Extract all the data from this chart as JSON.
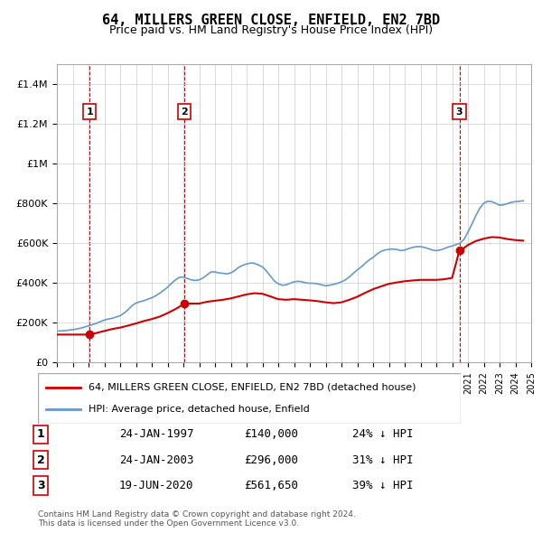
{
  "title": "64, MILLERS GREEN CLOSE, ENFIELD, EN2 7BD",
  "subtitle": "Price paid vs. HM Land Registry's House Price Index (HPI)",
  "ylabel": "",
  "ylim": [
    0,
    1500000
  ],
  "yticks": [
    0,
    200000,
    400000,
    600000,
    800000,
    1000000,
    1200000,
    1400000
  ],
  "ytick_labels": [
    "£0",
    "£200K",
    "£400K",
    "£600K",
    "£800K",
    "£1M",
    "£1.2M",
    "£1.4M"
  ],
  "background_color": "#ffffff",
  "grid_color": "#cccccc",
  "sale_dates": [
    1997.07,
    2003.07,
    2020.46
  ],
  "sale_prices": [
    140000,
    296000,
    561650
  ],
  "sale_labels": [
    "1",
    "2",
    "3"
  ],
  "legend_line1": "64, MILLERS GREEN CLOSE, ENFIELD, EN2 7BD (detached house)",
  "legend_line2": "HPI: Average price, detached house, Enfield",
  "table_rows": [
    [
      "1",
      "24-JAN-1997",
      "£140,000",
      "24% ↓ HPI"
    ],
    [
      "2",
      "24-JAN-2003",
      "£296,000",
      "31% ↓ HPI"
    ],
    [
      "3",
      "19-JUN-2020",
      "£561,650",
      "39% ↓ HPI"
    ]
  ],
  "footer": "Contains HM Land Registry data © Crown copyright and database right 2024.\nThis data is licensed under the Open Government Licence v3.0.",
  "hpi_years": [
    1995.0,
    1995.25,
    1995.5,
    1995.75,
    1996.0,
    1996.25,
    1996.5,
    1996.75,
    1997.0,
    1997.25,
    1997.5,
    1997.75,
    1998.0,
    1998.25,
    1998.5,
    1998.75,
    1999.0,
    1999.25,
    1999.5,
    1999.75,
    2000.0,
    2000.25,
    2000.5,
    2000.75,
    2001.0,
    2001.25,
    2001.5,
    2001.75,
    2002.0,
    2002.25,
    2002.5,
    2002.75,
    2003.0,
    2003.25,
    2003.5,
    2003.75,
    2004.0,
    2004.25,
    2004.5,
    2004.75,
    2005.0,
    2005.25,
    2005.5,
    2005.75,
    2006.0,
    2006.25,
    2006.5,
    2006.75,
    2007.0,
    2007.25,
    2007.5,
    2007.75,
    2008.0,
    2008.25,
    2008.5,
    2008.75,
    2009.0,
    2009.25,
    2009.5,
    2009.75,
    2010.0,
    2010.25,
    2010.5,
    2010.75,
    2011.0,
    2011.25,
    2011.5,
    2011.75,
    2012.0,
    2012.25,
    2012.5,
    2012.75,
    2013.0,
    2013.25,
    2013.5,
    2013.75,
    2014.0,
    2014.25,
    2014.5,
    2014.75,
    2015.0,
    2015.25,
    2015.5,
    2015.75,
    2016.0,
    2016.25,
    2016.5,
    2016.75,
    2017.0,
    2017.25,
    2017.5,
    2017.75,
    2018.0,
    2018.25,
    2018.5,
    2018.75,
    2019.0,
    2019.25,
    2019.5,
    2019.75,
    2020.0,
    2020.25,
    2020.5,
    2020.75,
    2021.0,
    2021.25,
    2021.5,
    2021.75,
    2022.0,
    2022.25,
    2022.5,
    2022.75,
    2023.0,
    2023.25,
    2023.5,
    2023.75,
    2024.0,
    2024.25,
    2024.5
  ],
  "hpi_values": [
    158000,
    158500,
    160000,
    162000,
    165000,
    168000,
    172000,
    178000,
    184000,
    190000,
    197000,
    205000,
    213000,
    218000,
    222000,
    228000,
    235000,
    248000,
    265000,
    285000,
    298000,
    305000,
    310000,
    318000,
    325000,
    335000,
    348000,
    362000,
    378000,
    398000,
    415000,
    428000,
    429000,
    422000,
    415000,
    412000,
    415000,
    425000,
    440000,
    455000,
    455000,
    450000,
    448000,
    445000,
    450000,
    462000,
    478000,
    488000,
    495000,
    500000,
    498000,
    490000,
    480000,
    460000,
    435000,
    410000,
    395000,
    388000,
    390000,
    398000,
    405000,
    408000,
    405000,
    400000,
    398000,
    398000,
    395000,
    390000,
    385000,
    388000,
    392000,
    398000,
    405000,
    415000,
    430000,
    448000,
    465000,
    480000,
    498000,
    515000,
    528000,
    545000,
    558000,
    565000,
    568000,
    570000,
    568000,
    562000,
    565000,
    572000,
    578000,
    582000,
    582000,
    578000,
    572000,
    565000,
    562000,
    565000,
    572000,
    580000,
    585000,
    592000,
    600000,
    618000,
    655000,
    695000,
    738000,
    775000,
    800000,
    810000,
    808000,
    800000,
    790000,
    792000,
    798000,
    805000,
    808000,
    810000,
    812000
  ],
  "price_years": [
    1995.0,
    1995.5,
    1996.0,
    1996.5,
    1997.07,
    1997.5,
    1998.0,
    1998.5,
    1999.0,
    1999.5,
    2000.0,
    2000.5,
    2001.0,
    2001.5,
    2002.0,
    2002.5,
    2003.07,
    2003.5,
    2004.0,
    2004.5,
    2005.0,
    2005.5,
    2006.0,
    2006.5,
    2007.0,
    2007.5,
    2008.0,
    2008.5,
    2009.0,
    2009.5,
    2010.0,
    2010.5,
    2011.0,
    2011.5,
    2012.0,
    2012.5,
    2013.0,
    2013.5,
    2014.0,
    2014.5,
    2015.0,
    2015.5,
    2016.0,
    2016.5,
    2017.0,
    2017.5,
    2018.0,
    2018.5,
    2019.0,
    2019.5,
    2020.0,
    2020.46,
    2020.75,
    2021.0,
    2021.5,
    2022.0,
    2022.5,
    2023.0,
    2023.5,
    2024.0,
    2024.5
  ],
  "price_values": [
    140000,
    140000,
    140000,
    140000,
    140000,
    148000,
    158000,
    168000,
    175000,
    185000,
    196000,
    208000,
    218000,
    230000,
    248000,
    268000,
    296000,
    296000,
    296000,
    305000,
    310000,
    315000,
    322000,
    332000,
    342000,
    348000,
    345000,
    332000,
    318000,
    315000,
    318000,
    315000,
    312000,
    308000,
    302000,
    298000,
    302000,
    315000,
    330000,
    350000,
    368000,
    382000,
    395000,
    402000,
    408000,
    412000,
    415000,
    415000,
    415000,
    418000,
    425000,
    561650,
    575000,
    590000,
    610000,
    622000,
    630000,
    628000,
    620000,
    615000,
    612000
  ],
  "sale_color": "#cc0000",
  "hpi_color": "#6699cc",
  "vline_color": "#cc0000",
  "xmin": 1995,
  "xmax": 2025
}
